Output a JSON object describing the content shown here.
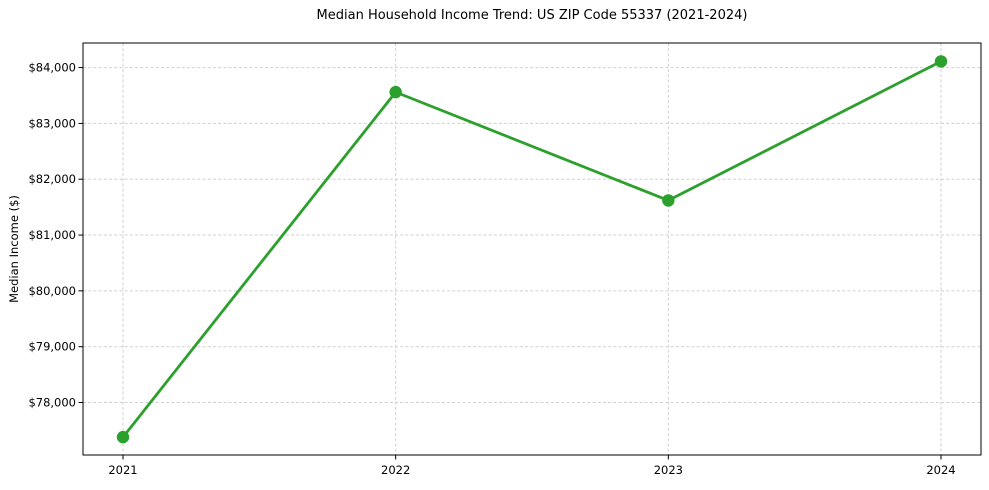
{
  "chart_data": {
    "type": "line",
    "title": "Median Household Income Trend: US ZIP Code 55337 (2021-2024)",
    "xlabel": "",
    "ylabel": "Median Income ($)",
    "categories": [
      "2021",
      "2022",
      "2023",
      "2024"
    ],
    "series": [
      {
        "name": "median-household-income",
        "values": [
          77380,
          83560,
          81620,
          84110
        ],
        "color": "#2ca02c",
        "marker": "circle",
        "marker_radius": 6.2,
        "line_width": 2.8
      }
    ],
    "yticks": {
      "values": [
        78000,
        79000,
        80000,
        81000,
        82000,
        83000,
        84000
      ],
      "labels": [
        "$78,000",
        "$79,000",
        "$80,000",
        "$81,000",
        "$82,000",
        "$83,000",
        "$84,000"
      ]
    },
    "ylim": [
      77060,
      84440
    ],
    "grid": true,
    "grid_style": "dashed",
    "grid_color": "#d0d0d0",
    "spine_color": "#000000",
    "tick_color": "#000000",
    "legend": "none",
    "background": "#ffffff"
  }
}
